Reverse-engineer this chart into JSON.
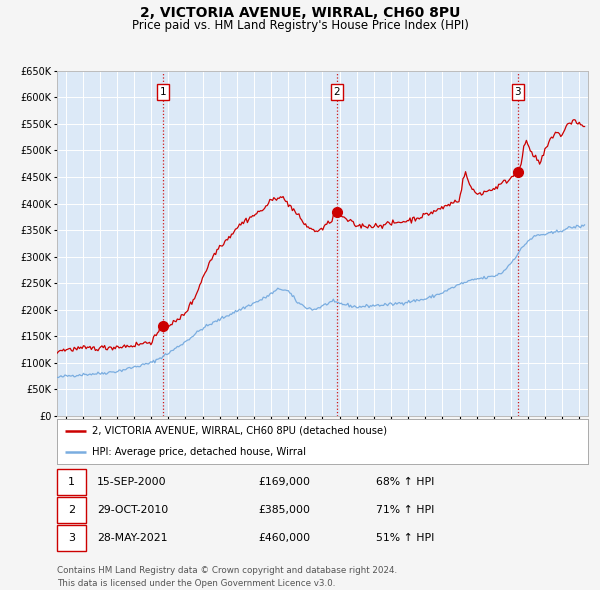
{
  "title": "2, VICTORIA AVENUE, WIRRAL, CH60 8PU",
  "subtitle": "Price paid vs. HM Land Registry's House Price Index (HPI)",
  "title_fontsize": 10,
  "subtitle_fontsize": 8.5,
  "ylim": [
    0,
    650000
  ],
  "yticks": [
    0,
    50000,
    100000,
    150000,
    200000,
    250000,
    300000,
    350000,
    400000,
    450000,
    500000,
    550000,
    600000,
    650000
  ],
  "xlim_start": 1994.5,
  "xlim_end": 2025.5,
  "background_color": "#dce9f7",
  "grid_color": "#ffffff",
  "red_line_color": "#cc0000",
  "blue_line_color": "#7aade0",
  "sale_marker_color": "#cc0000",
  "sale_marker_size": 7,
  "vline_color": "#cc0000",
  "transactions": [
    {
      "label": "1",
      "date_num": 2000.71,
      "price": 169000
    },
    {
      "label": "2",
      "date_num": 2010.83,
      "price": 385000
    },
    {
      "label": "3",
      "date_num": 2021.41,
      "price": 460000
    }
  ],
  "legend_entries": [
    "2, VICTORIA AVENUE, WIRRAL, CH60 8PU (detached house)",
    "HPI: Average price, detached house, Wirral"
  ],
  "footer_line1": "Contains HM Land Registry data © Crown copyright and database right 2024.",
  "footer_line2": "This data is licensed under the Open Government Licence v3.0.",
  "table_rows": [
    [
      "1",
      "15-SEP-2000",
      "£169,000",
      "68% ↑ HPI"
    ],
    [
      "2",
      "29-OCT-2010",
      "£385,000",
      "71% ↑ HPI"
    ],
    [
      "3",
      "28-MAY-2021",
      "£460,000",
      "51% ↑ HPI"
    ]
  ]
}
